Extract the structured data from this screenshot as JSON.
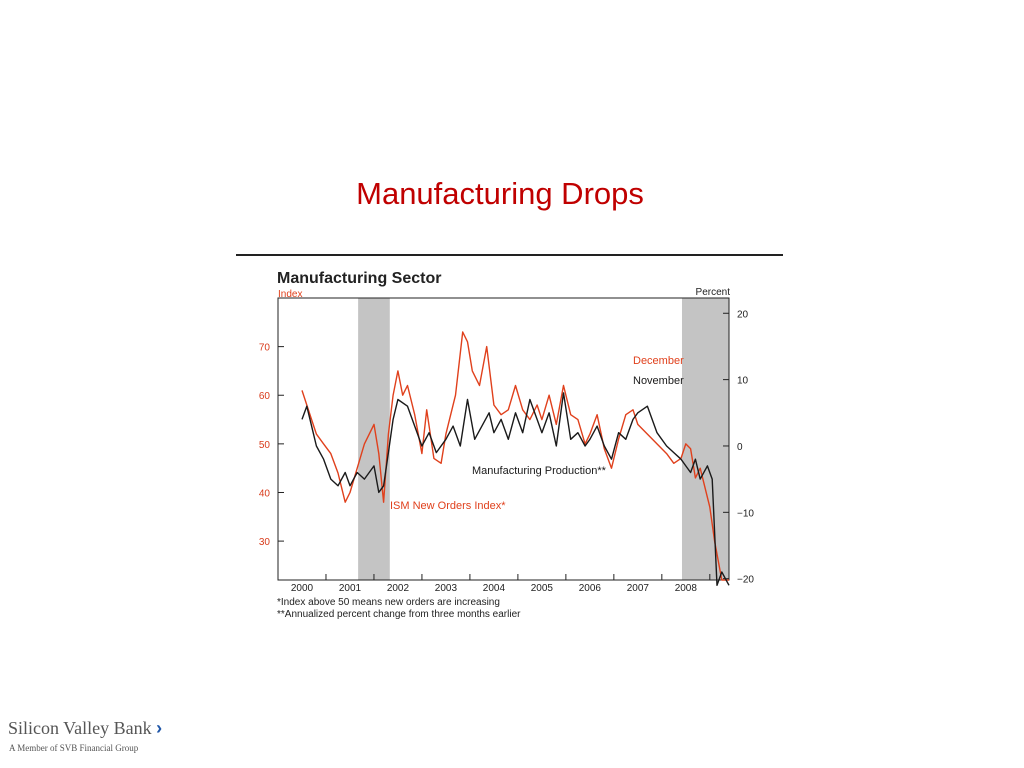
{
  "slide": {
    "title": "Manufacturing Drops"
  },
  "footer": {
    "brand": "Silicon Valley Bank",
    "chevron": "›",
    "tagline": "A Member of SVB Financial Group",
    "chevron_color": "#1f56a8"
  },
  "chart_data": {
    "type": "line",
    "title": "Manufacturing Sector",
    "left_axis_label": "Index",
    "right_axis_label": "Percent",
    "left_ylim": [
      22,
      80
    ],
    "right_ylim": [
      -20.2,
      22.3
    ],
    "left_ticks": [
      30,
      40,
      50,
      60,
      70
    ],
    "right_ticks": [
      -20,
      -10,
      0,
      10,
      20
    ],
    "right_tick_labels": [
      "−20",
      "−10",
      "0",
      "10",
      "20"
    ],
    "xlim": [
      1999.5,
      2008.9
    ],
    "x_ticks": [
      2000,
      2001,
      2002,
      2003,
      2004,
      2005,
      2006,
      2007,
      2008
    ],
    "recessions": [
      [
        2001.17,
        2001.83
      ],
      [
        2007.92,
        2008.9
      ]
    ],
    "grid": false,
    "colors": {
      "orange": "#e0401c",
      "black": "#1a1a1a",
      "recession": "#c4c4c4"
    },
    "series": [
      {
        "name": "ISM New Orders Index*",
        "axis": "left",
        "color": "#e0401c",
        "x": [
          2000.0,
          2000.1,
          2000.2,
          2000.3,
          2000.45,
          2000.6,
          2000.75,
          2000.9,
          2001.0,
          2001.15,
          2001.3,
          2001.5,
          2001.6,
          2001.7,
          2001.8,
          2001.9,
          2002.0,
          2002.1,
          2002.2,
          2002.35,
          2002.5,
          2002.6,
          2002.75,
          2002.9,
          2003.0,
          2003.2,
          2003.35,
          2003.45,
          2003.55,
          2003.7,
          2003.85,
          2004.0,
          2004.15,
          2004.3,
          2004.45,
          2004.6,
          2004.75,
          2004.9,
          2005.0,
          2005.15,
          2005.3,
          2005.45,
          2005.6,
          2005.75,
          2005.9,
          2006.0,
          2006.15,
          2006.3,
          2006.45,
          2006.6,
          2006.75,
          2006.9,
          2007.0,
          2007.2,
          2007.4,
          2007.6,
          2007.75,
          2007.9,
          2008.0,
          2008.1,
          2008.2,
          2008.3,
          2008.5,
          2008.6,
          2008.75,
          2008.9
        ],
        "y": [
          61,
          58,
          55,
          52,
          50,
          48,
          44,
          38,
          40,
          45,
          50,
          54,
          48,
          38,
          52,
          60,
          65,
          60,
          62,
          56,
          48,
          57,
          47,
          46,
          52,
          60,
          73,
          71,
          65,
          62,
          70,
          58,
          56,
          57,
          62,
          57,
          55,
          58,
          55,
          60,
          54,
          62,
          56,
          55,
          50,
          52,
          56,
          49,
          45,
          51,
          56,
          57,
          54,
          52,
          50,
          48,
          46,
          47,
          50,
          49,
          43,
          45,
          37,
          30,
          22,
          22
        ]
      },
      {
        "name": "Manufacturing Production**",
        "axis": "right",
        "color": "#1a1a1a",
        "x": [
          2000.0,
          2000.1,
          2000.2,
          2000.3,
          2000.45,
          2000.6,
          2000.75,
          2000.9,
          2001.0,
          2001.15,
          2001.3,
          2001.5,
          2001.6,
          2001.7,
          2001.8,
          2001.9,
          2002.0,
          2002.2,
          2002.35,
          2002.5,
          2002.65,
          2002.8,
          2003.0,
          2003.15,
          2003.3,
          2003.45,
          2003.6,
          2003.75,
          2003.9,
          2004.0,
          2004.15,
          2004.3,
          2004.45,
          2004.6,
          2004.75,
          2004.9,
          2005.0,
          2005.15,
          2005.3,
          2005.45,
          2005.6,
          2005.75,
          2005.9,
          2006.0,
          2006.15,
          2006.3,
          2006.45,
          2006.6,
          2006.75,
          2006.9,
          2007.0,
          2007.2,
          2007.4,
          2007.6,
          2007.75,
          2007.9,
          2008.0,
          2008.1,
          2008.2,
          2008.3,
          2008.45,
          2008.55,
          2008.65,
          2008.75,
          2008.9
        ],
        "y": [
          4,
          6,
          3,
          0,
          -2,
          -5,
          -6,
          -4,
          -6,
          -4,
          -5,
          -3,
          -7,
          -6,
          -1,
          4,
          7,
          6,
          3,
          0,
          2,
          -1,
          1,
          3,
          0,
          7,
          1,
          3,
          5,
          2,
          4,
          1,
          5,
          2,
          7,
          4,
          2,
          5,
          0,
          8,
          1,
          2,
          0,
          1,
          3,
          0,
          -2,
          2,
          1,
          4,
          5,
          6,
          2,
          0,
          -1,
          -2,
          -3,
          -4,
          -2,
          -5,
          -3,
          -5,
          -21,
          -19,
          -21
        ]
      }
    ],
    "annotations": [
      {
        "text": "December",
        "color": "#e0401c"
      },
      {
        "text": "November",
        "color": "#1a1a1a"
      }
    ],
    "footnotes": [
      "*Index above 50 means new orders are increasing",
      "**Annualized percent change from three months earlier"
    ]
  }
}
